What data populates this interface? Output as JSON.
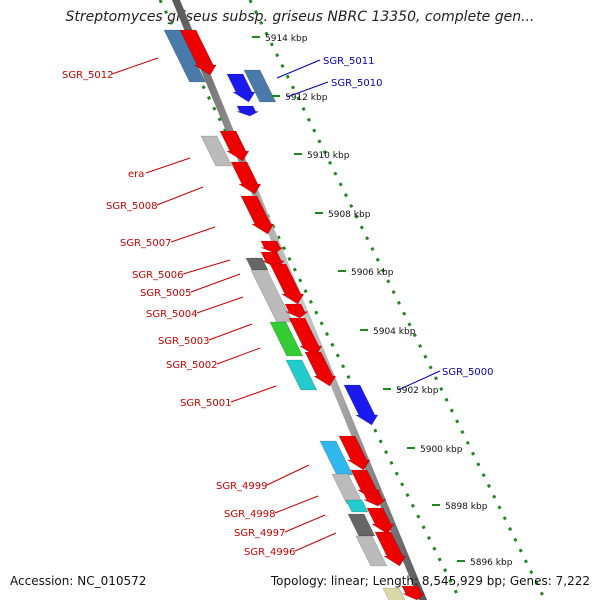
{
  "title": "Streptomyces griseus subsp. griseus NBRC 13350, complete gen...",
  "footer": {
    "accession": "Accession: NC_010572",
    "stats": "Topology: linear; Length: 8,545,929 bp; Genes: 7,222"
  },
  "scale_labels": [
    "5914 kbp",
    "5912 kbp",
    "5910 kbp",
    "5908 kbp",
    "5906 kbp",
    "5904 kbp",
    "5902 kbp",
    "5900 kbp",
    "5898 kbp",
    "5896 kbp"
  ],
  "left_labels": [
    "SGR_5012",
    "era",
    "SGR_5008",
    "SGR_5007",
    "SGR_5006",
    "SGR_5005",
    "SGR_5004",
    "SGR_5003",
    "SGR_5002",
    "SGR_5001",
    "SGR_4999",
    "SGR_4998",
    "SGR_4997",
    "SGR_4996"
  ],
  "right_labels": [
    "SGR_5011",
    "SGR_5010",
    "SGR_5000"
  ],
  "colors": {
    "left_label": "#cc0000",
    "right_label": "#0000bb",
    "forward_arrow": "#ee0000",
    "reverse_arrow": "#1a1aee",
    "ruler": "#777777",
    "track_dots": "#1a8a1a"
  }
}
